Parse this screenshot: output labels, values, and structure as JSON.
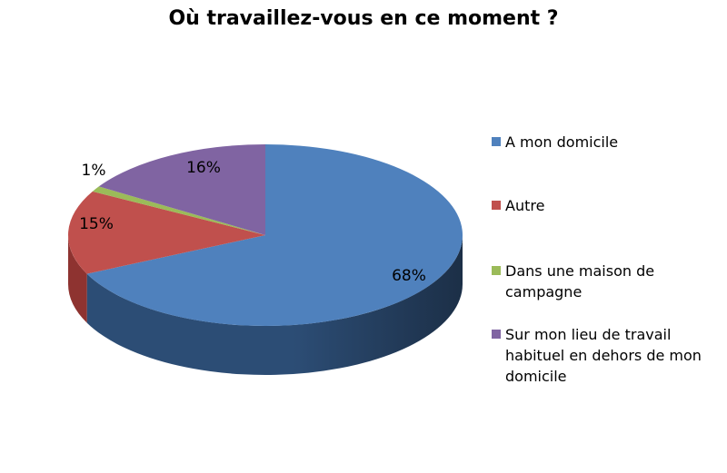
{
  "chart_data": {
    "type": "pie",
    "title": "Où travaillez-vous en ce moment ?",
    "three_d": true,
    "legend_position": "right",
    "slices": [
      {
        "label": "A mon domicile",
        "value": 68,
        "display": "68%",
        "color": "#4F81BD",
        "side_color": "#2C4D75"
      },
      {
        "label": "Autre",
        "value": 15,
        "display": "15%",
        "color": "#C0504D",
        "side_color": "#8E3330"
      },
      {
        "label": "Dans une maison de campagne",
        "value": 1,
        "display": "1%",
        "color": "#9BBB59",
        "side_color": "#6E8A3A"
      },
      {
        "label": "Sur mon lieu de travail habituel en dehors de mon domicile",
        "value": 16,
        "display": "16%",
        "color": "#8064A2",
        "side_color": "#5A4677"
      }
    ]
  }
}
